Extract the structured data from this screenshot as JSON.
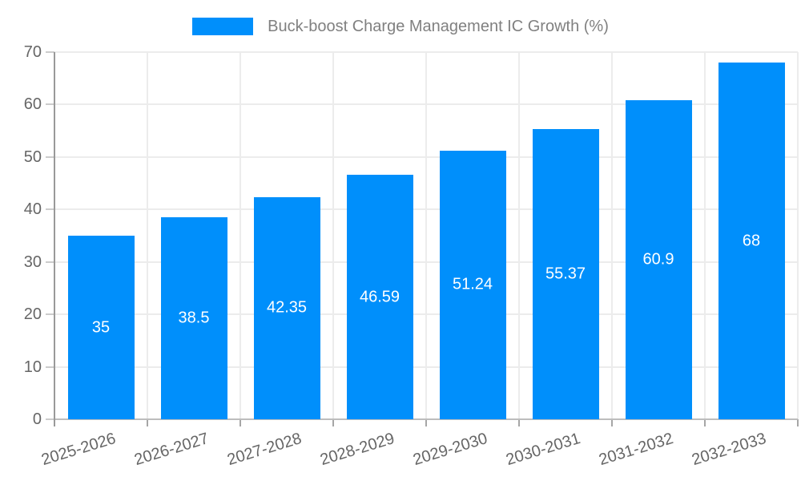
{
  "legend": {
    "label": "Buck-boost Charge Management IC Growth (%)"
  },
  "colors": {
    "bar": "#008FFB",
    "bar_label_text": "#FFFFFF",
    "axis_text": "#666666",
    "legend_text": "#808080",
    "grid_line": "#ECECEC",
    "y_axis_line": "#999999",
    "x_axis_line": "#BDBDBD",
    "y_tick_mark": "#CCCCCC",
    "x_tick_mark": "#A6A6A6",
    "background": "#FFFFFF"
  },
  "chart_data": {
    "type": "bar",
    "title": "Buck-boost Charge Management IC Growth (%)",
    "categories": [
      "2025-2026",
      "2026-2027",
      "2027-2028",
      "2028-2029",
      "2029-2030",
      "2030-2031",
      "2031-2032",
      "2032-2033"
    ],
    "values": [
      35,
      38.5,
      42.35,
      46.59,
      51.24,
      55.37,
      60.9,
      68
    ],
    "data_label_values": [
      "35",
      "38.5",
      "42.35",
      "46.59",
      "51.24",
      "55.37",
      "60.9",
      "68"
    ],
    "yticks": [
      0,
      10,
      20,
      30,
      40,
      50,
      60,
      70
    ],
    "ylim": [
      0,
      70
    ],
    "xlabel": "",
    "ylabel": "",
    "grid": true,
    "legend_position": "top",
    "data_labels": "inside-center",
    "x_label_rotation_deg": -17
  }
}
